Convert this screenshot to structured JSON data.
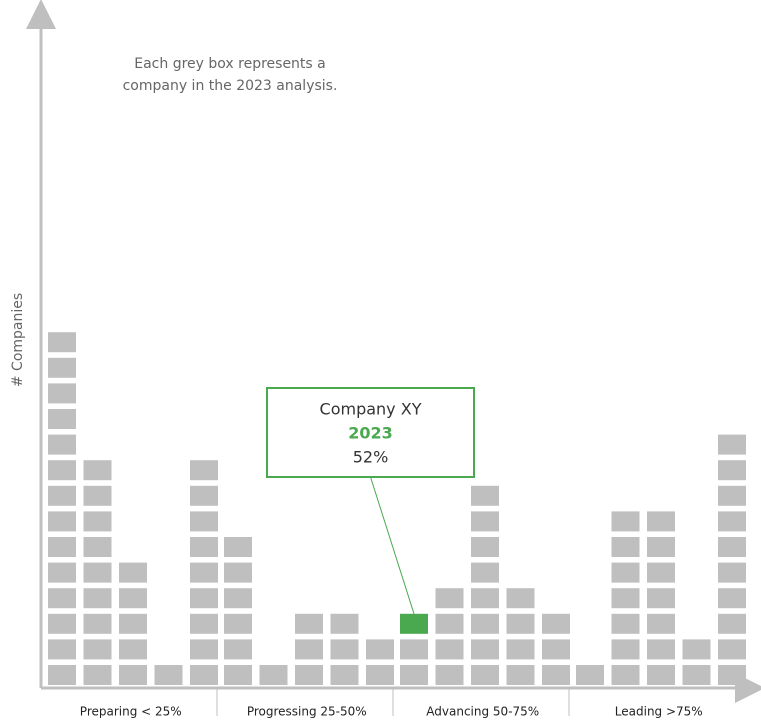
{
  "chart_data": {
    "type": "unit",
    "annotation": [
      "Each grey box represents a",
      "company in the 2023 analysis."
    ],
    "y_label": "# Companies",
    "categories": [
      "Preparing < 25%",
      "Progressing 25-50%",
      "Advancing 50-75%",
      "Leading >75%"
    ],
    "values": [
      [
        14,
        9,
        5,
        1,
        9
      ],
      [
        6,
        1,
        3,
        3,
        2
      ],
      [
        3,
        4,
        8,
        4,
        3
      ],
      [
        1,
        7,
        7,
        2,
        10
      ]
    ],
    "color": "#bfbfbf",
    "highlight": {
      "label": "Company XY",
      "year": "2023",
      "value": 52,
      "value_label": "52%",
      "color": "#4aa84f",
      "category": 2,
      "column": 0
    }
  }
}
